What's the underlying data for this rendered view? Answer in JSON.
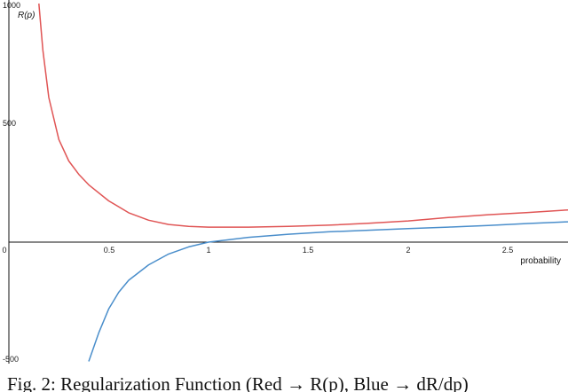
{
  "chart_data": {
    "type": "line",
    "ylabel": "R(p)",
    "xlabel": "probability",
    "xlim": [
      0,
      2.8
    ],
    "ylim": [
      -500,
      1000
    ],
    "x_ticks": [
      "0",
      "0.5",
      "1",
      "1.5",
      "2",
      "2.5"
    ],
    "y_ticks": [
      "1000",
      "500",
      "-500"
    ],
    "series": [
      {
        "color": "#e05555",
        "x": [
          0.15,
          0.17,
          0.2,
          0.25,
          0.3,
          0.35,
          0.4,
          0.5,
          0.6,
          0.7,
          0.8,
          0.9,
          1.0,
          1.2,
          1.4,
          1.6,
          1.8,
          2.0,
          2.2,
          2.4,
          2.6,
          2.8
        ],
        "y": [
          1000,
          805,
          606,
          430,
          340,
          284,
          240,
          173,
          123,
          92,
          74,
          66,
          63,
          63,
          66,
          71,
          79,
          89,
          103,
          115,
          124,
          135
        ]
      },
      {
        "color": "#4a8ecb",
        "x": [
          0.4,
          0.45,
          0.5,
          0.55,
          0.6,
          0.7,
          0.8,
          0.9,
          1.0,
          1.2,
          1.4,
          1.6,
          1.8,
          2.0,
          2.2,
          2.4,
          2.6,
          2.8
        ],
        "y": [
          -500,
          -380,
          -280,
          -210,
          -160,
          -95,
          -50,
          -20,
          0,
          20,
          33,
          43,
          50,
          57,
          63,
          70,
          78,
          85
        ]
      }
    ]
  },
  "caption": "Fig. 2: Regularization Function (Red → R(p), Blue → dR/dp)"
}
